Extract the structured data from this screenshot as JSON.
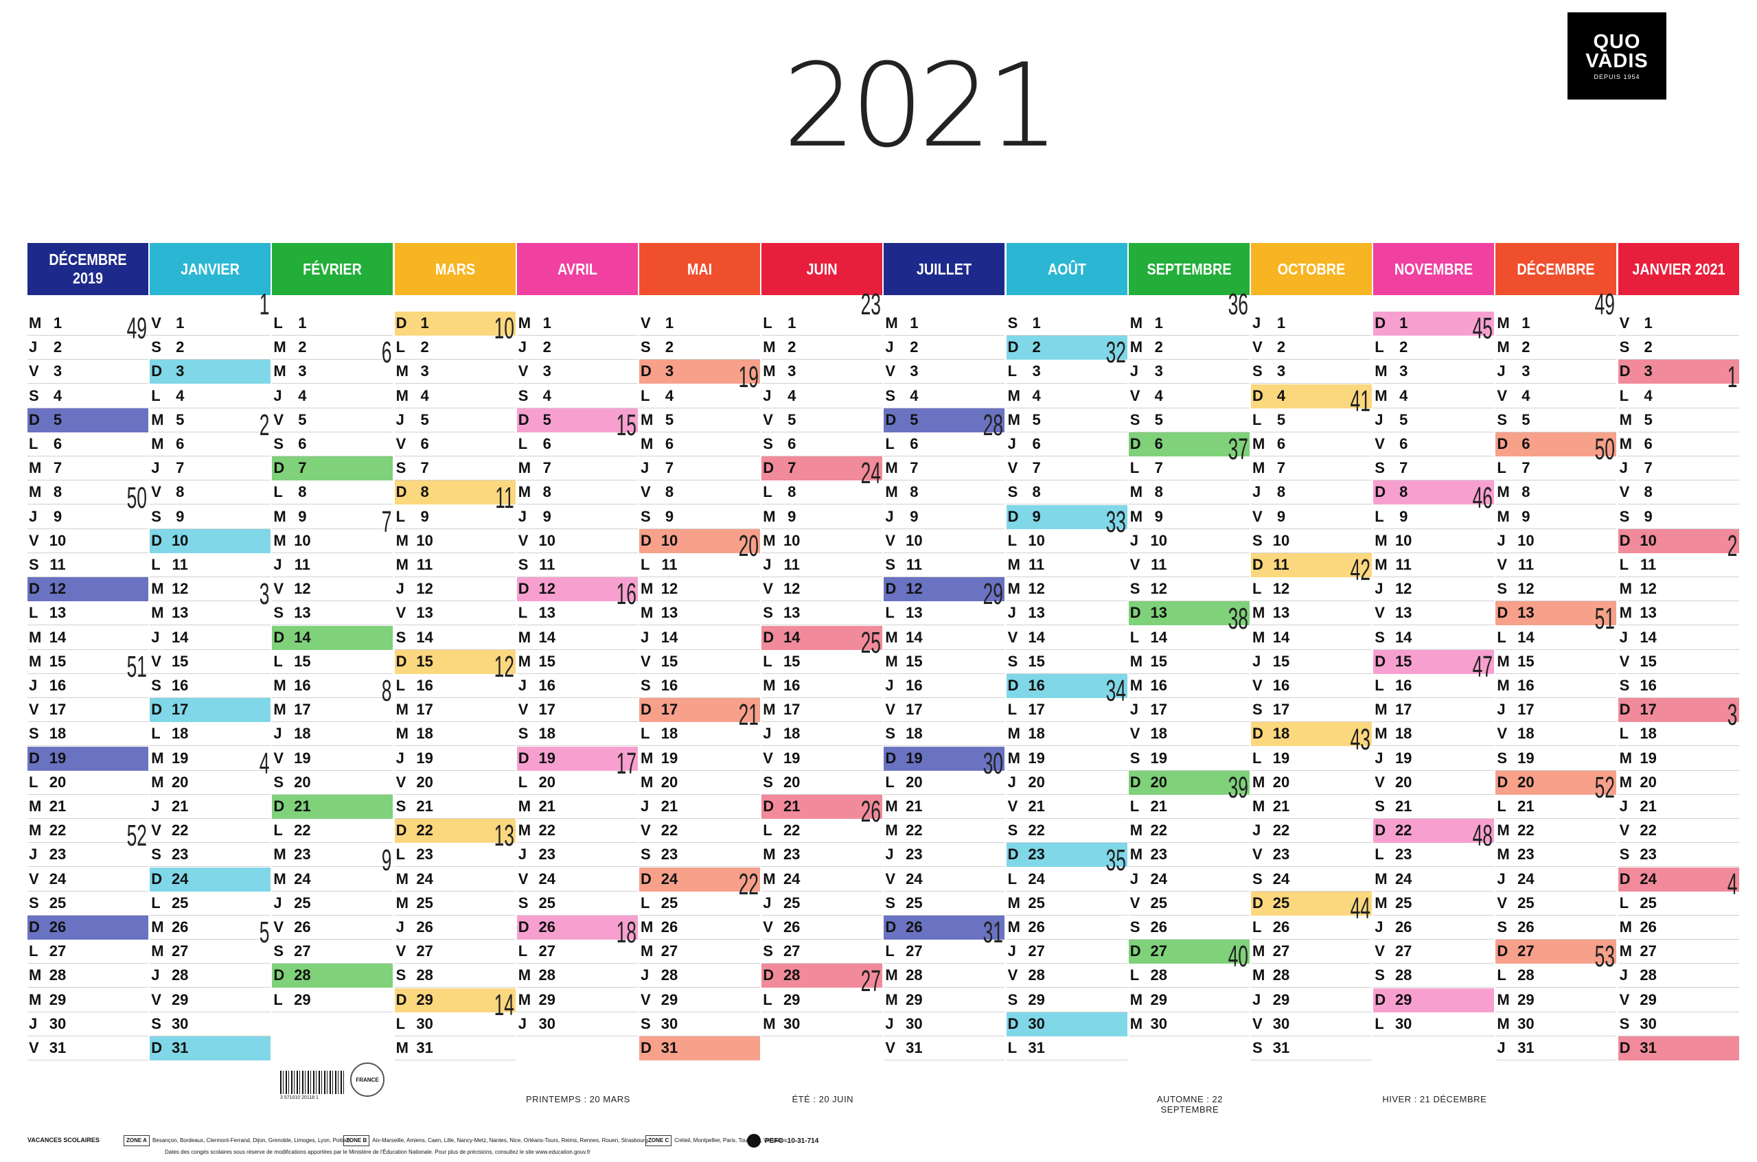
{
  "year": "2021",
  "logo": {
    "line1": "QUO",
    "line2": "VADIS",
    "line3": "DEPUIS 1954"
  },
  "months": [
    {
      "name": "DÉCEMBRE 2019",
      "color": "#1d2a8c",
      "start": 2,
      "len": 31,
      "hl": "#6a72c2",
      "week_marks": [
        {
          "d": 2,
          "w": "49"
        },
        {
          "d": 9,
          "w": "50"
        },
        {
          "d": 16,
          "w": "51"
        },
        {
          "d": 23,
          "w": "52"
        }
      ]
    },
    {
      "name": "JANVIER",
      "color": "#2bb7d3",
      "start": 4,
      "len": 31,
      "hl": "#7fd7e8",
      "week_marks": [
        {
          "d": 1,
          "w": "1"
        },
        {
          "d": 6,
          "w": "2"
        },
        {
          "d": 13,
          "w": "3"
        },
        {
          "d": 20,
          "w": "4"
        },
        {
          "d": 27,
          "w": "5"
        }
      ]
    },
    {
      "name": "FÉVRIER",
      "color": "#23ae3a",
      "start": 0,
      "len": 29,
      "hl": "#7fd17a",
      "week_marks": [
        {
          "d": 3,
          "w": "6"
        },
        {
          "d": 10,
          "w": "7"
        },
        {
          "d": 17,
          "w": "8"
        },
        {
          "d": 24,
          "w": "9"
        }
      ]
    },
    {
      "name": "MARS",
      "color": "#f7b523",
      "start": 6,
      "len": 31,
      "hl": "#fbd77e",
      "week_marks": [
        {
          "d": 2,
          "w": "10"
        },
        {
          "d": 9,
          "w": "11"
        },
        {
          "d": 16,
          "w": "12"
        },
        {
          "d": 23,
          "w": "13"
        },
        {
          "d": 30,
          "w": "14"
        }
      ]
    },
    {
      "name": "AVRIL",
      "color": "#f040a0",
      "start": 2,
      "len": 30,
      "hl": "#f7a0d0",
      "week_marks": [
        {
          "d": 6,
          "w": "15"
        },
        {
          "d": 13,
          "w": "16"
        },
        {
          "d": 20,
          "w": "17"
        },
        {
          "d": 27,
          "w": "18"
        }
      ]
    },
    {
      "name": "MAI",
      "color": "#f04f2e",
      "start": 4,
      "len": 31,
      "hl": "#f7a08a",
      "week_marks": [
        {
          "d": 4,
          "w": "19"
        },
        {
          "d": 11,
          "w": "20"
        },
        {
          "d": 18,
          "w": "21"
        },
        {
          "d": 25,
          "w": "22"
        }
      ]
    },
    {
      "name": "JUIN",
      "color": "#e81f3c",
      "start": 0,
      "len": 30,
      "hl": "#f18a9a",
      "week_marks": [
        {
          "d": 1,
          "w": "23"
        },
        {
          "d": 8,
          "w": "24"
        },
        {
          "d": 15,
          "w": "25"
        },
        {
          "d": 22,
          "w": "26"
        },
        {
          "d": 29,
          "w": "27"
        }
      ]
    },
    {
      "name": "JUILLET",
      "color": "#1d2a8c",
      "start": 2,
      "len": 31,
      "hl": "#6a72c2",
      "week_marks": [
        {
          "d": 6,
          "w": "28"
        },
        {
          "d": 13,
          "w": "29"
        },
        {
          "d": 20,
          "w": "30"
        },
        {
          "d": 27,
          "w": "31"
        }
      ]
    },
    {
      "name": "AOÛT",
      "color": "#2bb7d3",
      "start": 5,
      "len": 31,
      "hl": "#7fd7e8",
      "week_marks": [
        {
          "d": 3,
          "w": "32"
        },
        {
          "d": 10,
          "w": "33"
        },
        {
          "d": 17,
          "w": "34"
        },
        {
          "d": 24,
          "w": "35"
        }
      ]
    },
    {
      "name": "SEPTEMBRE",
      "color": "#23ae3a",
      "start": 1,
      "len": 30,
      "hl": "#7fd17a",
      "week_marks": [
        {
          "d": 1,
          "w": "36"
        },
        {
          "d": 7,
          "w": "37"
        },
        {
          "d": 14,
          "w": "38"
        },
        {
          "d": 21,
          "w": "39"
        },
        {
          "d": 28,
          "w": "40"
        }
      ]
    },
    {
      "name": "OCTOBRE",
      "color": "#f7b523",
      "start": 3,
      "len": 31,
      "hl": "#fbd77e",
      "week_marks": [
        {
          "d": 5,
          "w": "41"
        },
        {
          "d": 12,
          "w": "42"
        },
        {
          "d": 19,
          "w": "43"
        },
        {
          "d": 26,
          "w": "44"
        }
      ]
    },
    {
      "name": "NOVEMBRE",
      "color": "#f040a0",
      "start": 6,
      "len": 30,
      "hl": "#f7a0d0",
      "week_marks": [
        {
          "d": 2,
          "w": "45"
        },
        {
          "d": 9,
          "w": "46"
        },
        {
          "d": 16,
          "w": "47"
        },
        {
          "d": 23,
          "w": "48"
        }
      ]
    },
    {
      "name": "DÉCEMBRE",
      "color": "#f04f2e",
      "start": 1,
      "len": 31,
      "hl": "#f7a08a",
      "week_marks": [
        {
          "d": 1,
          "w": "49"
        },
        {
          "d": 7,
          "w": "50"
        },
        {
          "d": 14,
          "w": "51"
        },
        {
          "d": 21,
          "w": "52"
        },
        {
          "d": 28,
          "w": "53"
        }
      ]
    },
    {
      "name": "JANVIER 2021",
      "color": "#e81f3c",
      "start": 4,
      "len": 31,
      "hl": "#f18a9a",
      "week_marks": [
        {
          "d": 4,
          "w": "1"
        },
        {
          "d": 11,
          "w": "2"
        },
        {
          "d": 18,
          "w": "3"
        },
        {
          "d": 25,
          "w": "4"
        }
      ]
    }
  ],
  "day_letters": [
    "L",
    "M",
    "M",
    "J",
    "V",
    "S",
    "D"
  ],
  "seasons": [
    {
      "text": "PRINTEMPS : 20 MARS",
      "col": 4
    },
    {
      "text": "ÉTÉ : 20 JUIN",
      "col": 6
    },
    {
      "text": "AUTOMNE : 22 SEPTEMBRE",
      "col": 9
    },
    {
      "text": "HIVER : 21 DÉCEMBRE",
      "col": 11
    }
  ],
  "footer": {
    "title": "VACANCES SCOLAIRES",
    "zone_a_label": "ZONE A",
    "zone_a": "Besançon, Bordeaux, Clermont-Ferrand, Dijon, Grenoble, Limoges, Lyon, Poitiers.",
    "zone_b_label": "ZONE B",
    "zone_b": "Aix-Marseille, Amiens, Caen, Lille, Nancy-Metz, Nantes, Nice, Orléans-Tours, Reims, Rennes, Rouen, Strasbourg.",
    "zone_c_label": "ZONE C",
    "zone_c": "Créteil, Montpellier, Paris, Toulouse, Versailles.",
    "note": "Dates des congés scolaires sous réserve de modifications apportées par le Ministère de l'Éducation Nationale. Pour plus de précisions, consultez le site www.education.gouv.fr",
    "pefc": "PEFC",
    "pefc_code": "10-31-714",
    "barcode_text": "3 571010 20118 1",
    "stamp": "FRANCE"
  },
  "colors": {
    "vac_a": "#777777",
    "vac_b": "#9aa6d6",
    "vac_c": "#4a4a4a"
  }
}
